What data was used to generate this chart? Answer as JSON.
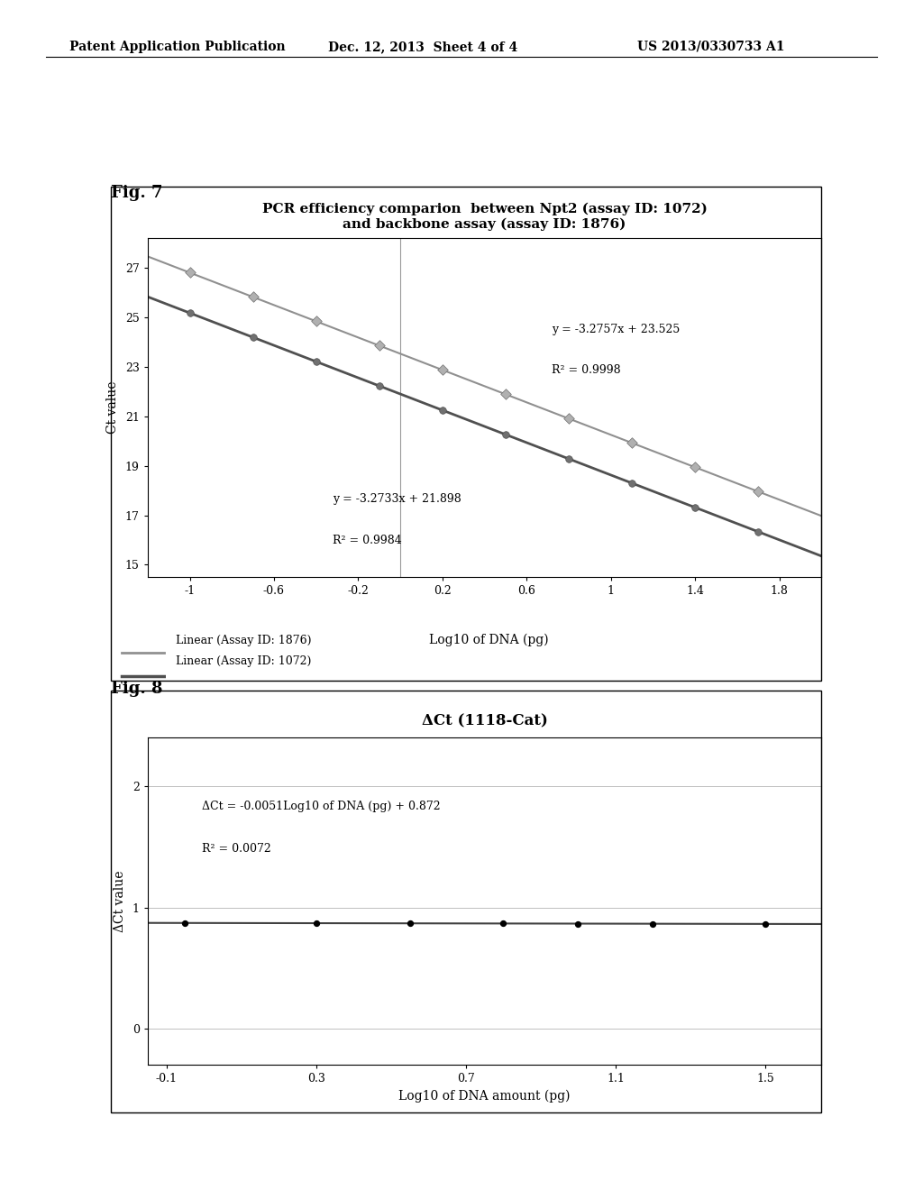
{
  "fig7": {
    "title_line1": "PCR efficiency comparion  between Npt2 (assay ID: 1072)",
    "title_line2": "and backbone assay (assay ID: 1876)",
    "xlabel": "Log10 of DNA (pg)",
    "ylabel": "Ct value",
    "xlim": [
      -1.2,
      2.0
    ],
    "ylim": [
      14.5,
      28.2
    ],
    "xticks": [
      -1,
      -0.6,
      -0.2,
      0.2,
      0.6,
      1,
      1.4,
      1.8
    ],
    "yticks": [
      15,
      17,
      19,
      21,
      23,
      25,
      27
    ],
    "series1_label": "Linear (Assay ID: 1876)",
    "series1_slope": -3.2757,
    "series1_intercept": 23.525,
    "series1_color": "#909090",
    "series1_marker": "D",
    "series1_marker_color": "#b0b0b0",
    "series1_eq": "y = -3.2757x + 23.525",
    "series1_r2": "R² = 0.9998",
    "series2_label": "Linear (Assay ID: 1072)",
    "series2_slope": -3.2733,
    "series2_intercept": 21.898,
    "series2_color": "#505050",
    "series2_marker": "o",
    "series2_marker_color": "#707070",
    "series2_eq": "y = -3.2733x + 21.898",
    "series2_r2": "R² = 0.9984",
    "x_data": [
      -1.0,
      -0.7,
      -0.4,
      -0.1,
      0.2,
      0.5,
      0.8,
      1.1,
      1.4,
      1.7
    ],
    "background_color": "#ffffff"
  },
  "fig8": {
    "title": "ΔCt (1118-Cat)",
    "xlabel": "Log10 of DNA amount (pg)",
    "ylabel": "ΔCt value",
    "xlim": [
      -0.15,
      1.65
    ],
    "ylim": [
      -0.3,
      2.4
    ],
    "xticks": [
      -0.1,
      0.3,
      0.7,
      1.1,
      1.5
    ],
    "yticks": [
      0,
      1,
      2
    ],
    "slope": -0.0051,
    "intercept": 0.872,
    "eq_line1": "ΔCt = -0.0051Log10 of DNA (pg) + 0.872",
    "eq_line2": "R² = 0.0072",
    "series_color": "#000000",
    "line_color": "#404040",
    "x_data_fig8": [
      -0.05,
      0.3,
      0.55,
      0.8,
      1.0,
      1.2,
      1.5
    ],
    "background_color": "#ffffff"
  },
  "header_left": "Patent Application Publication",
  "header_center": "Dec. 12, 2013  Sheet 4 of 4",
  "header_right": "US 2013/0330733 A1",
  "fig7_label": "Fig. 7",
  "fig8_label": "Fig. 8"
}
